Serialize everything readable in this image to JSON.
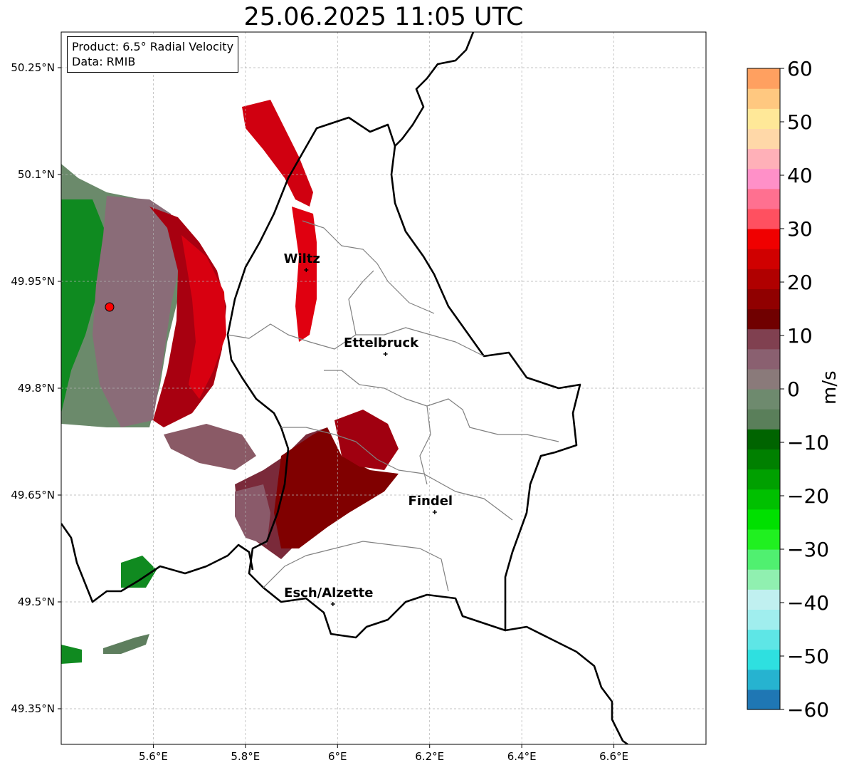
{
  "title": "25.06.2025 11:05 UTC",
  "info": {
    "product": "Product: 6.5° Radial Velocity",
    "data": "Data: RMIB"
  },
  "axes": {
    "lon_ticks": [
      "5.6°E",
      "5.8°E",
      "6°E",
      "6.2°E",
      "6.4°E",
      "6.6°E"
    ],
    "lon_values": [
      5.6,
      5.8,
      6.0,
      6.2,
      6.4,
      6.6
    ],
    "lat_ticks": [
      "50.25°N",
      "50.1°N",
      "49.95°N",
      "49.8°N",
      "49.65°N",
      "49.5°N",
      "49.35°N"
    ],
    "lat_values": [
      50.25,
      50.1,
      49.95,
      49.8,
      49.65,
      49.5,
      49.35
    ],
    "lon_range": [
      5.4,
      6.8
    ],
    "lat_range": [
      49.3,
      50.3
    ],
    "grid": true
  },
  "cities": [
    {
      "name": "Wiltz",
      "lon": 5.932,
      "lat": 49.966
    },
    {
      "name": "Ettelbruck",
      "lon": 6.104,
      "lat": 49.848
    },
    {
      "name": "Findel",
      "lon": 6.211,
      "lat": 49.626
    },
    {
      "name": "Esch/Alzette",
      "lon": 5.99,
      "lat": 49.497
    }
  ],
  "radar_site": {
    "lon": 5.505,
    "lat": 49.914,
    "color": "#ff0000"
  },
  "colorbar": {
    "unit": "m/s",
    "ticks": [
      "60",
      "50",
      "40",
      "30",
      "20",
      "10",
      "0",
      "−10",
      "−20",
      "−30",
      "−40",
      "−50",
      "−60"
    ],
    "tick_values": [
      60,
      50,
      40,
      30,
      20,
      10,
      0,
      -10,
      -20,
      -30,
      -40,
      -50,
      -60
    ],
    "range": [
      -60,
      60
    ],
    "colors": [
      "#1f77b4",
      "#26b3d0",
      "#2ee0e0",
      "#5ee6e6",
      "#a0eeee",
      "#c0f0f0",
      "#90f0b0",
      "#50f070",
      "#20f020",
      "#00e000",
      "#00c000",
      "#00a000",
      "#008000",
      "#006400",
      "#5a7f5a",
      "#6e8a6e",
      "#8a7a7a",
      "#8a6070",
      "#804050",
      "#700000",
      "#900000",
      "#b00000",
      "#d00000",
      "#f00000",
      "#ff5060",
      "#ff7090",
      "#ff90c8",
      "#ffb0b8",
      "#ffd8a8",
      "#ffe898",
      "#ffc880",
      "#ffa060"
    ]
  },
  "colors": {
    "border": "#000000",
    "canton": "#808080",
    "grid": "#b0b0b0"
  }
}
